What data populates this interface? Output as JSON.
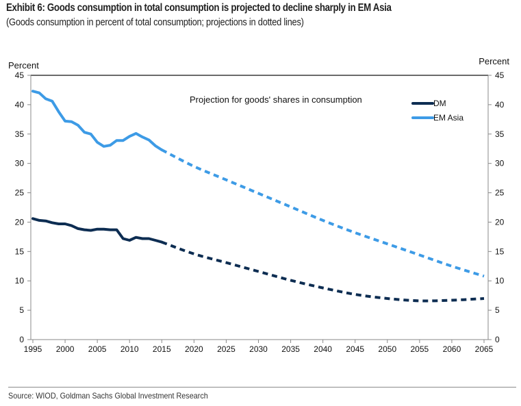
{
  "header": {
    "title": "Exhibit 6: Goods consumption in total consumption is projected to decline sharply in EM Asia",
    "subtitle": "(Goods consumption in percent of total consumption; projections in dotted lines)"
  },
  "footer": {
    "source": "Source: WIOD, Goldman Sachs Global Investment Research"
  },
  "chart_data": {
    "type": "line",
    "title": "Exhibit 6: Goods consumption in total consumption is projected to decline sharply in EM Asia",
    "subtitle": "(Goods consumption in percent of total consumption; projections in dotted lines)",
    "annotation": "Projection for goods' shares in consumption",
    "xlabel": "",
    "ylabel_left": "Percent",
    "ylabel_right": "Percent",
    "xlim": [
      1995,
      2065
    ],
    "ylim": [
      0,
      45
    ],
    "x_ticks": [
      1995,
      2000,
      2005,
      2010,
      2015,
      2020,
      2025,
      2030,
      2035,
      2040,
      2045,
      2050,
      2055,
      2060,
      2065
    ],
    "y_ticks": [
      0,
      5,
      10,
      15,
      20,
      25,
      30,
      35,
      40,
      45
    ],
    "grid": false,
    "legend": {
      "placement": "top-right",
      "entries": [
        "DM",
        "EM Asia"
      ]
    },
    "projection_start": 2015,
    "series": [
      {
        "name": "DM",
        "color": "#0d2d52",
        "historical": {
          "x": [
            1995,
            1996,
            1997,
            1998,
            1999,
            2000,
            2001,
            2002,
            2003,
            2004,
            2005,
            2006,
            2007,
            2008,
            2009,
            2010,
            2011,
            2012,
            2013,
            2014,
            2015
          ],
          "y": [
            20.6,
            20.3,
            20.2,
            19.9,
            19.7,
            19.7,
            19.4,
            18.9,
            18.7,
            18.6,
            18.8,
            18.8,
            18.7,
            18.7,
            17.2,
            16.9,
            17.4,
            17.2,
            17.2,
            16.9,
            16.6
          ]
        },
        "projection": {
          "x": [
            2015,
            2020,
            2025,
            2030,
            2035,
            2040,
            2045,
            2050,
            2055,
            2060,
            2065
          ],
          "y": [
            16.6,
            14.6,
            13.1,
            11.6,
            10.1,
            8.8,
            7.7,
            7.0,
            6.6,
            6.7,
            7.0
          ]
        }
      },
      {
        "name": "EM Asia",
        "color": "#3d9be6",
        "historical": {
          "x": [
            1995,
            1996,
            1997,
            1998,
            1999,
            2000,
            2001,
            2002,
            2003,
            2004,
            2005,
            2006,
            2007,
            2008,
            2009,
            2010,
            2011,
            2012,
            2013,
            2014,
            2015
          ],
          "y": [
            42.3,
            42.0,
            41.0,
            40.6,
            38.8,
            37.2,
            37.1,
            36.5,
            35.3,
            35.0,
            33.6,
            32.9,
            33.1,
            33.9,
            33.9,
            34.6,
            35.1,
            34.5,
            34.0,
            33.0,
            32.3
          ]
        },
        "projection": {
          "x": [
            2015,
            2020,
            2025,
            2030,
            2035,
            2040,
            2045,
            2050,
            2055,
            2060,
            2065
          ],
          "y": [
            32.3,
            29.5,
            27.2,
            24.9,
            22.6,
            20.3,
            18.2,
            16.3,
            14.4,
            12.5,
            10.8
          ]
        }
      }
    ]
  }
}
